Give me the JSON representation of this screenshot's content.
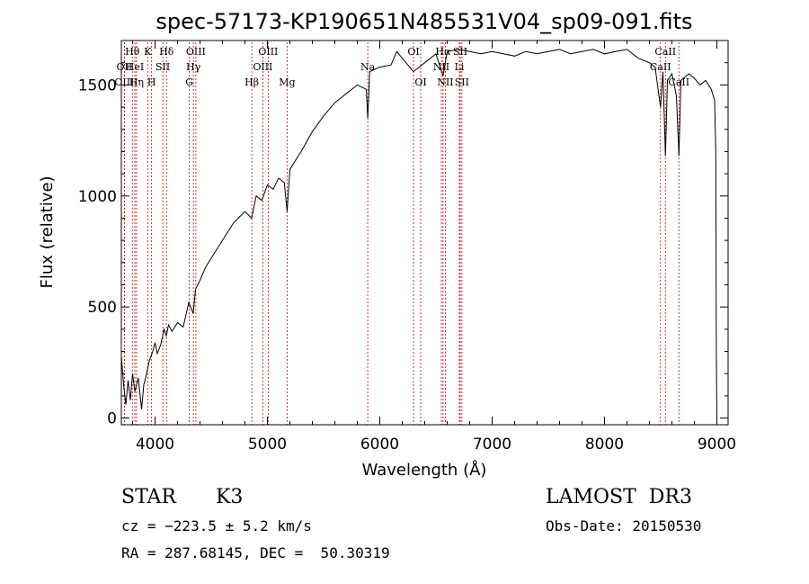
{
  "chart_data": {
    "type": "line",
    "title": "spec-57173-KP190651N485531V04_sp09-091.fits",
    "xlabel": "Wavelength (Å)",
    "ylabel": "Flux (relative)",
    "xlim": [
      3700,
      9100
    ],
    "ylim": [
      -30,
      1700
    ],
    "x_ticks": [
      4000,
      5000,
      6000,
      7000,
      8000,
      9000
    ],
    "x_tick_labels": [
      "4000",
      "5000",
      "6000",
      "7000",
      "8000",
      "9000"
    ],
    "y_ticks": [
      0,
      500,
      1000,
      1500
    ],
    "y_tick_labels": [
      "0",
      "500",
      "1000",
      "1500"
    ],
    "series": [
      {
        "name": "spectrum",
        "color": "#000000",
        "points": [
          [
            3700,
            280
          ],
          [
            3720,
            150
          ],
          [
            3740,
            60
          ],
          [
            3760,
            170
          ],
          [
            3780,
            80
          ],
          [
            3800,
            200
          ],
          [
            3820,
            120
          ],
          [
            3850,
            180
          ],
          [
            3880,
            40
          ],
          [
            3900,
            150
          ],
          [
            3920,
            190
          ],
          [
            3950,
            260
          ],
          [
            3980,
            300
          ],
          [
            4000,
            340
          ],
          [
            4020,
            290
          ],
          [
            4050,
            330
          ],
          [
            4080,
            400
          ],
          [
            4100,
            370
          ],
          [
            4120,
            420
          ],
          [
            4150,
            390
          ],
          [
            4200,
            430
          ],
          [
            4250,
            410
          ],
          [
            4300,
            520
          ],
          [
            4340,
            470
          ],
          [
            4360,
            580
          ],
          [
            4400,
            620
          ],
          [
            4450,
            680
          ],
          [
            4500,
            720
          ],
          [
            4600,
            800
          ],
          [
            4700,
            880
          ],
          [
            4800,
            930
          ],
          [
            4860,
            900
          ],
          [
            4900,
            1000
          ],
          [
            4950,
            980
          ],
          [
            5000,
            1050
          ],
          [
            5050,
            1030
          ],
          [
            5100,
            1080
          ],
          [
            5150,
            1060
          ],
          [
            5175,
            930
          ],
          [
            5200,
            1120
          ],
          [
            5300,
            1200
          ],
          [
            5400,
            1290
          ],
          [
            5500,
            1360
          ],
          [
            5600,
            1420
          ],
          [
            5700,
            1460
          ],
          [
            5800,
            1500
          ],
          [
            5880,
            1480
          ],
          [
            5893,
            1350
          ],
          [
            5910,
            1560
          ],
          [
            6000,
            1580
          ],
          [
            6100,
            1590
          ],
          [
            6150,
            1650
          ],
          [
            6200,
            1620
          ],
          [
            6300,
            1560
          ],
          [
            6400,
            1600
          ],
          [
            6500,
            1640
          ],
          [
            6563,
            1540
          ],
          [
            6600,
            1650
          ],
          [
            6700,
            1660
          ],
          [
            6800,
            1650
          ],
          [
            6900,
            1640
          ],
          [
            7000,
            1650
          ],
          [
            7100,
            1640
          ],
          [
            7200,
            1630
          ],
          [
            7300,
            1650
          ],
          [
            7400,
            1640
          ],
          [
            7500,
            1650
          ],
          [
            7600,
            1660
          ],
          [
            7700,
            1640
          ],
          [
            7800,
            1650
          ],
          [
            7900,
            1660
          ],
          [
            8000,
            1640
          ],
          [
            8100,
            1650
          ],
          [
            8200,
            1660
          ],
          [
            8300,
            1620
          ],
          [
            8400,
            1600
          ],
          [
            8450,
            1580
          ],
          [
            8498,
            1400
          ],
          [
            8520,
            1560
          ],
          [
            8542,
            1180
          ],
          [
            8560,
            1520
          ],
          [
            8600,
            1550
          ],
          [
            8640,
            1450
          ],
          [
            8662,
            1180
          ],
          [
            8680,
            1520
          ],
          [
            8750,
            1550
          ],
          [
            8800,
            1530
          ],
          [
            8850,
            1500
          ],
          [
            8900,
            1520
          ],
          [
            8950,
            1480
          ],
          [
            8980,
            1430
          ],
          [
            8990,
            1200
          ],
          [
            8995,
            300
          ],
          [
            9000,
            0
          ]
        ]
      }
    ],
    "lines": [
      {
        "label": "Hθ",
        "wave": 3798,
        "row": 0
      },
      {
        "label": "OII",
        "wave": 3727,
        "row": 1
      },
      {
        "label": "OIII",
        "wave": 3727,
        "row": 2
      },
      {
        "label": "HeI",
        "wave": 3820,
        "row": 1
      },
      {
        "label": "Hη",
        "wave": 3835,
        "row": 2
      },
      {
        "label": "K",
        "wave": 3934,
        "row": 0
      },
      {
        "label": "H",
        "wave": 3969,
        "row": 2
      },
      {
        "label": "SII",
        "wave": 4069,
        "row": 1
      },
      {
        "label": "Hδ",
        "wave": 4102,
        "row": 0
      },
      {
        "label": "OIII",
        "wave": 4363,
        "row": 0
      },
      {
        "label": "Hγ",
        "wave": 4341,
        "row": 1
      },
      {
        "label": "G",
        "wave": 4305,
        "row": 2
      },
      {
        "label": "Hβ",
        "wave": 4861,
        "row": 2
      },
      {
        "label": "OIII",
        "wave": 5007,
        "row": 0
      },
      {
        "label": "OIII",
        "wave": 4959,
        "row": 1
      },
      {
        "label": "Mg",
        "wave": 5175,
        "row": 2
      },
      {
        "label": "Na",
        "wave": 5893,
        "row": 1
      },
      {
        "label": "OI",
        "wave": 6300,
        "row": 0
      },
      {
        "label": "OI",
        "wave": 6364,
        "row": 2
      },
      {
        "label": "Hα",
        "wave": 6563,
        "row": 0
      },
      {
        "label": "SII",
        "wave": 6716,
        "row": 0
      },
      {
        "label": "NII",
        "wave": 6548,
        "row": 1
      },
      {
        "label": "Li",
        "wave": 6708,
        "row": 1
      },
      {
        "label": "NII",
        "wave": 6583,
        "row": 2
      },
      {
        "label": "SII",
        "wave": 6731,
        "row": 2
      },
      {
        "label": "CaII",
        "wave": 8542,
        "row": 0
      },
      {
        "label": "CaII",
        "wave": 8498,
        "row": 1
      },
      {
        "label": "CaII",
        "wave": 8662,
        "row": 2
      }
    ],
    "line_color": "#cc0000"
  },
  "info": {
    "object_class": "STAR",
    "subclass": "K3",
    "survey": "LAMOST  DR3",
    "cz": "cz = −223.5 ± 5.2 km/s",
    "obs_date": "Obs-Date: 20150530",
    "coords": "RA = 287.68145, DEC =  50.30319"
  }
}
